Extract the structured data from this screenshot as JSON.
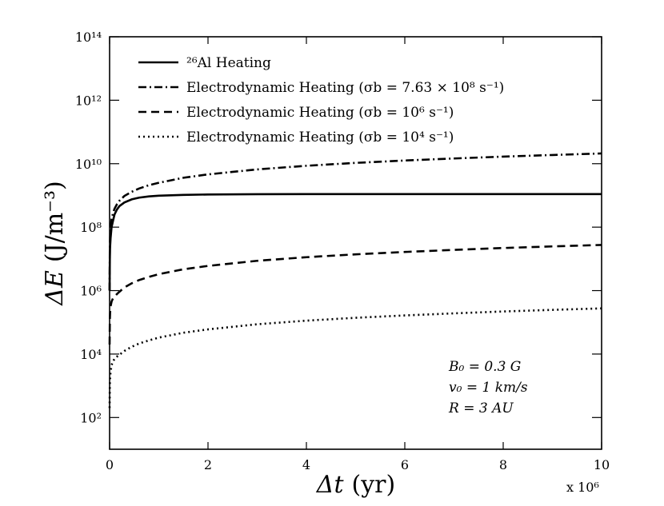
{
  "chart_data": {
    "type": "line",
    "title": "",
    "xlabel_symbol": "Δt",
    "xlabel_unit": "(yr)",
    "ylabel_symbol": "ΔE",
    "ylabel_unit": "(J/m⁻³)",
    "x_multiplier_label": "x 10⁶",
    "x_scale": "linear",
    "y_scale": "log",
    "xlim": [
      0,
      10
    ],
    "ylim_exponent": [
      1,
      14
    ],
    "x_ticks": [
      0,
      2,
      4,
      6,
      8,
      10
    ],
    "y_tick_exponents": [
      2,
      4,
      6,
      8,
      10,
      12,
      14
    ],
    "y_tick_labels": [
      "10²",
      "10⁴",
      "10⁶",
      "10⁸",
      "10¹⁰",
      "10¹²",
      "10¹⁴"
    ],
    "x_tick_labels": [
      "0",
      "2",
      "4",
      "6",
      "8",
      "10"
    ],
    "legend_position": "top-left",
    "series": [
      {
        "name": "²⁶Al Heating",
        "dash": "solid",
        "x": [
          0.0,
          0.005,
          0.01,
          0.02,
          0.04,
          0.07,
          0.1,
          0.15,
          0.2,
          0.3,
          0.45,
          0.6,
          0.8,
          1.0,
          1.5,
          2.0,
          3.0,
          4.0,
          5.0,
          6.0,
          7.0,
          8.0,
          9.0,
          10.0
        ],
        "y": [
          1000000.0,
          12000000.0,
          24000000.0,
          45000000.0,
          100000000.0,
          160000000.0,
          250000000.0,
          360000000.0,
          460000000.0,
          600000000.0,
          750000000.0,
          850000000.0,
          930000000.0,
          980000000.0,
          1040000000.0,
          1070000000.0,
          1090000000.0,
          1100000000.0,
          1100000000.0,
          1100000000.0,
          1100000000.0,
          1100000000.0,
          1100000000.0,
          1100000000.0
        ]
      },
      {
        "name": "Electrodynamic Heating (σb = 7.63 × 10⁸ s⁻¹)",
        "dash": "dashdot",
        "x": [
          0.0,
          0.005,
          0.01,
          0.02,
          0.04,
          0.07,
          0.1,
          0.15,
          0.2,
          0.3,
          0.45,
          0.6,
          0.8,
          1.0,
          1.5,
          2.0,
          3.0,
          4.0,
          5.0,
          6.0,
          7.0,
          8.0,
          9.0,
          10.0
        ],
        "y": [
          1000000.0,
          20000000.0,
          45000000.0,
          100000000.0,
          180000000.0,
          280000000.0,
          380000000.0,
          530000000.0,
          680000000.0,
          960000000.0,
          1300000000.0,
          1650000000.0,
          2100000000.0,
          2500000000.0,
          3600000000.0,
          4600000000.0,
          6600000000.0,
          8600000000.0,
          10600000000.0,
          12600000000.0,
          14600000000.0,
          16700000000.0,
          18800000000.0,
          21000000000.0
        ]
      },
      {
        "name": "Electrodynamic Heating (σb = 10⁶ s⁻¹)",
        "dash": "dashed",
        "x": [
          0.0,
          0.005,
          0.01,
          0.02,
          0.04,
          0.07,
          0.1,
          0.15,
          0.2,
          0.3,
          0.45,
          0.6,
          0.8,
          1.0,
          1.5,
          2.0,
          3.0,
          4.0,
          5.0,
          6.0,
          7.0,
          8.0,
          9.0,
          10.0
        ],
        "y": [
          20000.0,
          120000.0,
          200000.0,
          320000.0,
          450000.0,
          580000.0,
          650000.0,
          780000.0,
          920000.0,
          1250000.0,
          1700000.0,
          2150000.0,
          2700000.0,
          3300000.0,
          4700000.0,
          6000000.0,
          8700000.0,
          11300000.0,
          13900000.0,
          16500000.0,
          19200000.0,
          22000000.0,
          24700000.0,
          27500000.0
        ]
      },
      {
        "name": "Electrodynamic Heating (σb = 10⁴ s⁻¹)",
        "dash": "dotted",
        "x": [
          0.0,
          0.005,
          0.01,
          0.02,
          0.04,
          0.07,
          0.1,
          0.15,
          0.2,
          0.3,
          0.45,
          0.6,
          0.8,
          1.0,
          1.5,
          2.0,
          3.0,
          4.0,
          5.0,
          6.0,
          7.0,
          8.0,
          9.0,
          10.0
        ],
        "y": [
          200,
          1100,
          1700,
          2800,
          4500,
          6000,
          7000,
          8300,
          9500,
          12500.0,
          17000.0,
          21500.0,
          27000.0,
          33000.0,
          47000.0,
          60000.0,
          87000.0,
          113000.0,
          139000.0,
          165000.0,
          192000.0,
          220000.0,
          247000.0,
          275000.0
        ]
      }
    ],
    "annotations": [
      "B₀ = 0.3 G",
      "v₀ = 1 km/s",
      "R = 3 AU"
    ],
    "annotation_position": "bottom-right"
  }
}
